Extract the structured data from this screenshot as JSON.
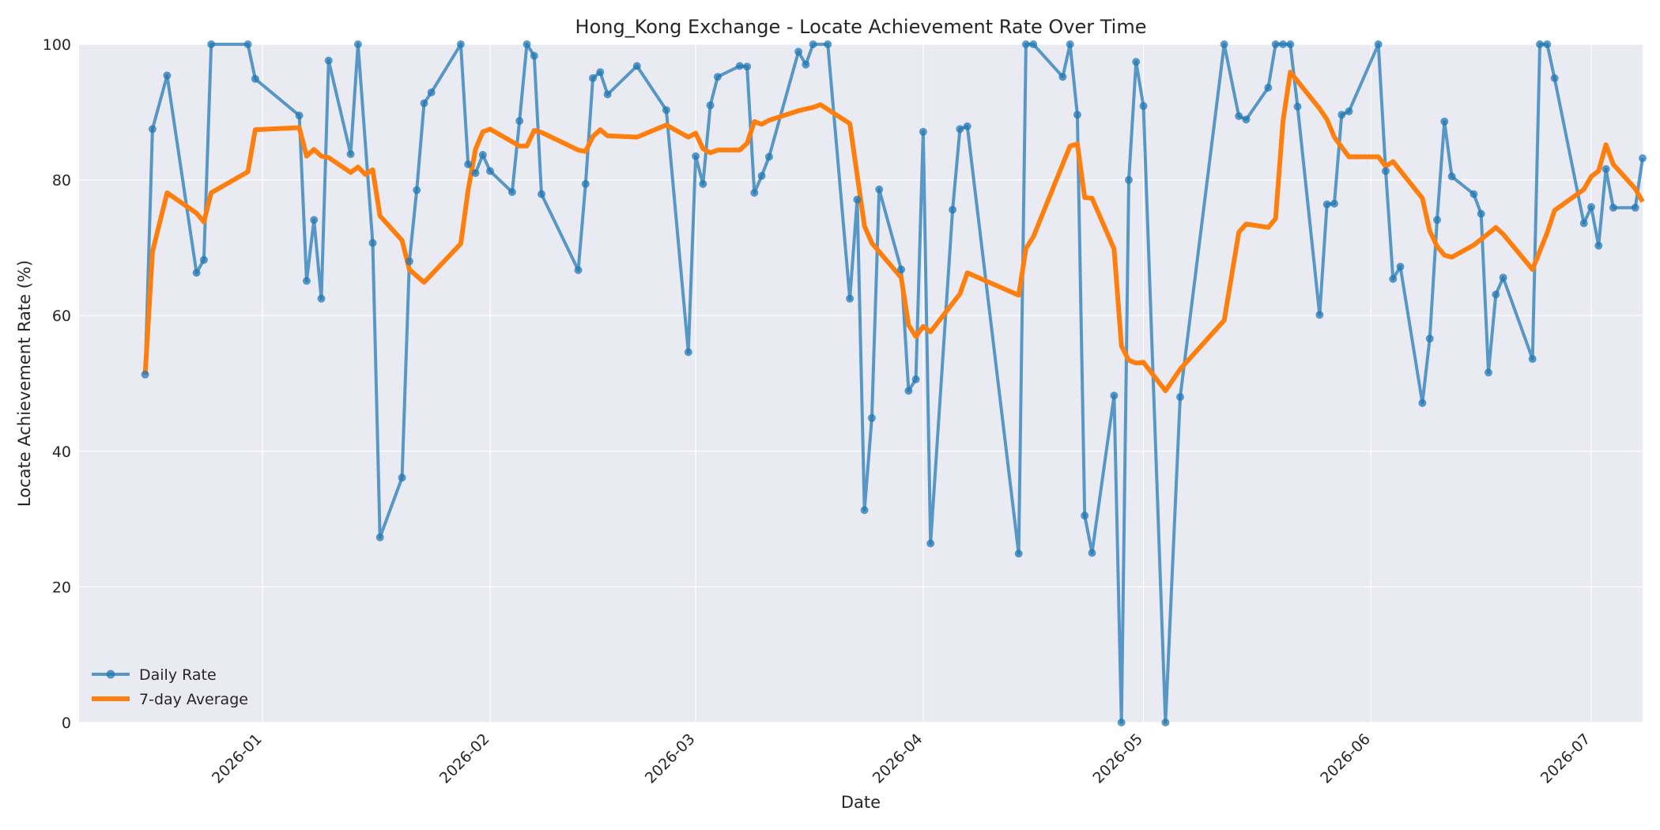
{
  "chart_data": {
    "type": "line",
    "title": "Hong_Kong Exchange - Locate Achievement Rate Over Time",
    "xlabel": "Date",
    "ylabel": "Locate Achievement Rate (%)",
    "xlim": [
      "2025-12-07",
      "2026-07-08"
    ],
    "ylim": [
      0,
      100
    ],
    "x_ticks": [
      "2026-01",
      "2026-02",
      "2026-03",
      "2026-04",
      "2026-05",
      "2026-06",
      "2026-07"
    ],
    "y_ticks": [
      0,
      20,
      40,
      60,
      80,
      100
    ],
    "grid": true,
    "legend_position": "lower-left",
    "colors": {
      "daily": "#1f77b4",
      "avg": "#ff7f0e",
      "plot_background": "#eaeaf2"
    },
    "series": [
      {
        "name": "Daily Rate",
        "style": "line-with-markers",
        "points": [
          [
            "2025-12-16",
            51.3
          ],
          [
            "2025-12-17",
            87.5
          ],
          [
            "2025-12-19",
            95.4
          ],
          [
            "2025-12-23",
            66.3
          ],
          [
            "2025-12-24",
            68.2
          ],
          [
            "2025-12-25",
            100
          ],
          [
            "2025-12-30",
            100
          ],
          [
            "2025-12-31",
            94.9
          ],
          [
            "2026-01-06",
            89.5
          ],
          [
            "2026-01-07",
            65.1
          ],
          [
            "2026-01-08",
            74.1
          ],
          [
            "2026-01-09",
            62.5
          ],
          [
            "2026-01-10",
            97.6
          ],
          [
            "2026-01-13",
            83.8
          ],
          [
            "2026-01-14",
            100
          ],
          [
            "2026-01-16",
            70.7
          ],
          [
            "2026-01-17",
            27.3
          ],
          [
            "2026-01-20",
            36.1
          ],
          [
            "2026-01-21",
            68.0
          ],
          [
            "2026-01-22",
            78.5
          ],
          [
            "2026-01-23",
            91.3
          ],
          [
            "2026-01-24",
            92.9
          ],
          [
            "2026-01-28",
            100
          ],
          [
            "2026-01-29",
            82.3
          ],
          [
            "2026-01-30",
            81.0
          ],
          [
            "2026-01-31",
            83.7
          ],
          [
            "2026-02-01",
            81.3
          ],
          [
            "2026-02-04",
            78.2
          ],
          [
            "2026-02-05",
            88.7
          ],
          [
            "2026-02-06",
            100
          ],
          [
            "2026-02-07",
            98.3
          ],
          [
            "2026-02-08",
            77.9
          ],
          [
            "2026-02-13",
            66.7
          ],
          [
            "2026-02-14",
            79.4
          ],
          [
            "2026-02-15",
            95.0
          ],
          [
            "2026-02-16",
            95.9
          ],
          [
            "2026-02-17",
            92.6
          ],
          [
            "2026-02-21",
            96.8
          ],
          [
            "2026-02-25",
            90.3
          ],
          [
            "2026-02-28",
            54.6
          ],
          [
            "2026-03-01",
            83.5
          ],
          [
            "2026-03-02",
            79.4
          ],
          [
            "2026-03-03",
            91.0
          ],
          [
            "2026-03-04",
            95.2
          ],
          [
            "2026-03-07",
            96.8
          ],
          [
            "2026-03-08",
            96.7
          ],
          [
            "2026-03-09",
            78.1
          ],
          [
            "2026-03-10",
            80.6
          ],
          [
            "2026-03-11",
            83.4
          ],
          [
            "2026-03-15",
            98.9
          ],
          [
            "2026-03-16",
            97.0
          ],
          [
            "2026-03-17",
            100
          ],
          [
            "2026-03-19",
            100
          ],
          [
            "2026-03-22",
            62.5
          ],
          [
            "2026-03-23",
            77.1
          ],
          [
            "2026-03-24",
            31.3
          ],
          [
            "2026-03-25",
            44.9
          ],
          [
            "2026-03-26",
            78.6
          ],
          [
            "2026-03-29",
            66.8
          ],
          [
            "2026-03-30",
            48.9
          ],
          [
            "2026-03-31",
            50.6
          ],
          [
            "2026-04-01",
            87.1
          ],
          [
            "2026-04-02",
            26.4
          ],
          [
            "2026-04-05",
            75.6
          ],
          [
            "2026-04-06",
            87.5
          ],
          [
            "2026-04-07",
            87.9
          ],
          [
            "2026-04-14",
            24.9
          ],
          [
            "2026-04-15",
            100
          ],
          [
            "2026-04-16",
            100
          ],
          [
            "2026-04-20",
            95.2
          ],
          [
            "2026-04-21",
            100
          ],
          [
            "2026-04-22",
            89.6
          ],
          [
            "2026-04-23",
            30.5
          ],
          [
            "2026-04-24",
            25.0
          ],
          [
            "2026-04-27",
            48.2
          ],
          [
            "2026-04-28",
            0
          ],
          [
            "2026-04-29",
            80.0
          ],
          [
            "2026-04-30",
            97.4
          ],
          [
            "2026-05-01",
            90.9
          ],
          [
            "2026-05-04",
            0
          ],
          [
            "2026-05-06",
            48.0
          ],
          [
            "2026-05-12",
            100
          ],
          [
            "2026-05-14",
            89.4
          ],
          [
            "2026-05-15",
            88.9
          ],
          [
            "2026-05-18",
            93.6
          ],
          [
            "2026-05-19",
            100
          ],
          [
            "2026-05-20",
            100
          ],
          [
            "2026-05-21",
            100
          ],
          [
            "2026-05-22",
            90.8
          ],
          [
            "2026-05-25",
            60.1
          ],
          [
            "2026-05-26",
            76.4
          ],
          [
            "2026-05-27",
            76.5
          ],
          [
            "2026-05-28",
            89.6
          ],
          [
            "2026-05-29",
            90.1
          ],
          [
            "2026-06-02",
            100
          ],
          [
            "2026-06-03",
            81.3
          ],
          [
            "2026-06-04",
            65.4
          ],
          [
            "2026-06-05",
            67.2
          ],
          [
            "2026-06-08",
            47.1
          ],
          [
            "2026-06-09",
            56.6
          ],
          [
            "2026-06-10",
            74.1
          ],
          [
            "2026-06-11",
            88.6
          ],
          [
            "2026-06-12",
            80.5
          ],
          [
            "2026-06-15",
            77.9
          ],
          [
            "2026-06-16",
            75.0
          ],
          [
            "2026-06-17",
            51.6
          ],
          [
            "2026-06-18",
            63.1
          ],
          [
            "2026-06-19",
            65.6
          ],
          [
            "2026-06-23",
            53.6
          ],
          [
            "2026-06-24",
            100
          ],
          [
            "2026-06-25",
            100
          ],
          [
            "2026-06-26",
            95.0
          ],
          [
            "2026-06-30",
            73.6
          ],
          [
            "2026-07-01",
            76.0
          ],
          [
            "2026-07-02",
            70.3
          ],
          [
            "2026-07-03",
            81.6
          ],
          [
            "2026-07-04",
            75.9
          ],
          [
            "2026-07-07",
            75.9
          ],
          [
            "2026-07-08",
            83.2
          ]
        ]
      },
      {
        "name": "7-day Average",
        "style": "line",
        "points": [
          [
            "2025-12-16",
            51.3
          ],
          [
            "2025-12-17",
            69.4
          ],
          [
            "2025-12-19",
            78.1
          ],
          [
            "2025-12-23",
            75.1
          ],
          [
            "2025-12-24",
            73.8
          ],
          [
            "2025-12-25",
            78.1
          ],
          [
            "2025-12-30",
            81.2
          ],
          [
            "2025-12-31",
            87.4
          ],
          [
            "2026-01-06",
            87.7
          ],
          [
            "2026-01-07",
            83.5
          ],
          [
            "2026-01-08",
            84.5
          ],
          [
            "2026-01-09",
            83.5
          ],
          [
            "2026-01-10",
            83.3
          ],
          [
            "2026-01-13",
            81.1
          ],
          [
            "2026-01-14",
            81.9
          ],
          [
            "2026-01-15",
            80.8
          ],
          [
            "2026-01-16",
            81.5
          ],
          [
            "2026-01-17",
            74.7
          ],
          [
            "2026-01-20",
            71.1
          ],
          [
            "2026-01-21",
            66.8
          ],
          [
            "2026-01-23",
            64.9
          ],
          [
            "2026-01-28",
            70.6
          ],
          [
            "2026-01-29",
            78.5
          ],
          [
            "2026-01-30",
            84.5
          ],
          [
            "2026-01-31",
            87.1
          ],
          [
            "2026-02-01",
            87.5
          ],
          [
            "2026-02-05",
            85.0
          ],
          [
            "2026-02-06",
            85.0
          ],
          [
            "2026-02-07",
            87.3
          ],
          [
            "2026-02-08",
            87.0
          ],
          [
            "2026-02-13",
            84.4
          ],
          [
            "2026-02-14",
            84.2
          ],
          [
            "2026-02-15",
            86.4
          ],
          [
            "2026-02-16",
            87.4
          ],
          [
            "2026-02-17",
            86.5
          ],
          [
            "2026-02-21",
            86.3
          ],
          [
            "2026-02-25",
            88.1
          ],
          [
            "2026-02-28",
            86.3
          ],
          [
            "2026-03-01",
            86.9
          ],
          [
            "2026-03-02",
            84.6
          ],
          [
            "2026-03-03",
            84.0
          ],
          [
            "2026-03-04",
            84.4
          ],
          [
            "2026-03-07",
            84.4
          ],
          [
            "2026-03-08",
            85.4
          ],
          [
            "2026-03-09",
            88.6
          ],
          [
            "2026-03-10",
            88.2
          ],
          [
            "2026-03-11",
            88.8
          ],
          [
            "2026-03-15",
            90.2
          ],
          [
            "2026-03-17",
            90.7
          ],
          [
            "2026-03-18",
            91.1
          ],
          [
            "2026-03-22",
            88.3
          ],
          [
            "2026-03-23",
            80.7
          ],
          [
            "2026-03-24",
            73.2
          ],
          [
            "2026-03-25",
            70.7
          ],
          [
            "2026-03-29",
            65.6
          ],
          [
            "2026-03-30",
            58.6
          ],
          [
            "2026-03-31",
            56.9
          ],
          [
            "2026-04-01",
            58.4
          ],
          [
            "2026-04-02",
            57.6
          ],
          [
            "2026-04-06",
            63.2
          ],
          [
            "2026-04-07",
            66.3
          ],
          [
            "2026-04-14",
            63.0
          ],
          [
            "2026-04-15",
            69.9
          ],
          [
            "2026-04-16",
            71.6
          ],
          [
            "2026-04-21",
            85.0
          ],
          [
            "2026-04-22",
            85.3
          ],
          [
            "2026-04-23",
            77.4
          ],
          [
            "2026-04-24",
            77.3
          ],
          [
            "2026-04-27",
            69.8
          ],
          [
            "2026-04-28",
            55.5
          ],
          [
            "2026-04-29",
            53.4
          ],
          [
            "2026-04-30",
            53.0
          ],
          [
            "2026-05-01",
            53.1
          ],
          [
            "2026-05-04",
            48.9
          ],
          [
            "2026-05-06",
            52.1
          ],
          [
            "2026-05-12",
            59.3
          ],
          [
            "2026-05-14",
            72.3
          ],
          [
            "2026-05-15",
            73.5
          ],
          [
            "2026-05-18",
            73.0
          ],
          [
            "2026-05-19",
            74.3
          ],
          [
            "2026-05-20",
            88.6
          ],
          [
            "2026-05-21",
            95.9
          ],
          [
            "2026-05-25",
            90.5
          ],
          [
            "2026-05-26",
            88.9
          ],
          [
            "2026-05-27",
            86.3
          ],
          [
            "2026-05-29",
            83.4
          ],
          [
            "2026-06-02",
            83.4
          ],
          [
            "2026-06-03",
            82.0
          ],
          [
            "2026-06-04",
            82.7
          ],
          [
            "2026-06-08",
            77.3
          ],
          [
            "2026-06-09",
            72.5
          ],
          [
            "2026-06-10",
            70.2
          ],
          [
            "2026-06-11",
            68.9
          ],
          [
            "2026-06-12",
            68.6
          ],
          [
            "2026-06-15",
            70.4
          ],
          [
            "2026-06-17",
            72.1
          ],
          [
            "2026-06-18",
            73.0
          ],
          [
            "2026-06-19",
            72.0
          ],
          [
            "2026-06-23",
            66.8
          ],
          [
            "2026-06-25",
            72.2
          ],
          [
            "2026-06-26",
            75.5
          ],
          [
            "2026-06-30",
            78.6
          ],
          [
            "2026-07-01",
            80.5
          ],
          [
            "2026-07-02",
            81.3
          ],
          [
            "2026-07-03",
            85.2
          ],
          [
            "2026-07-04",
            82.3
          ],
          [
            "2026-07-07",
            78.7
          ],
          [
            "2026-07-08",
            76.8
          ]
        ]
      }
    ]
  }
}
